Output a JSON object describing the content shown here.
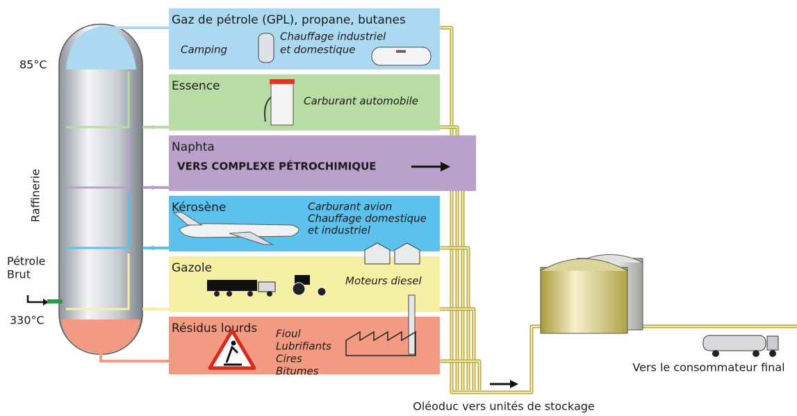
{
  "column": {
    "name": "Raffinerie",
    "top_temperature": "85°C",
    "bottom_temperature": "330°C",
    "input": [
      "Pétrole",
      "Brut"
    ]
  },
  "products": [
    {
      "name": "Gaz de pétrole (GPL), propane, butanes",
      "color": "#acd9f1",
      "uses": [
        "Camping",
        "Chauffage industriel",
        "et domestique"
      ]
    },
    {
      "name": "Essence",
      "color": "#b8dca4",
      "uses": [
        "Carburant automobile"
      ]
    },
    {
      "name": "Naphta",
      "color": "#b9a1cc",
      "uses": [
        "VERS COMPLEXE PÉTROCHIMIQUE"
      ]
    },
    {
      "name": "Kérosène",
      "color": "#5cc1ec",
      "uses": [
        "Carburant avion",
        "Chauffage domestique",
        "et industriel"
      ]
    },
    {
      "name": "Gazole",
      "color": "#f5f0a3",
      "uses": [
        "Moteurs diesel"
      ]
    },
    {
      "name": "Résidus lourds",
      "color": "#f29a82",
      "uses": [
        "Fioul",
        "Lubrifiants",
        "Cires",
        "Bitumes"
      ]
    }
  ],
  "pipeline": "Oléoduc vers unités de stockage",
  "destination": "Vers le consommateur final"
}
